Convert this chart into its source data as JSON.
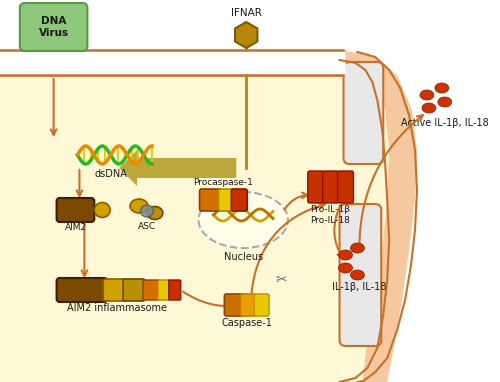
{
  "figsize": [
    5.0,
    3.82
  ],
  "dpi": 100,
  "bg_white": "#ffffff",
  "cell_bg": "#fff8d6",
  "membrane_fill": "#f5c8a0",
  "membrane_edge": "#c8702a",
  "arrow_color": "#c8702a",
  "olive_arrow": "#b8a030",
  "virus_green": "#8dc87a",
  "virus_green_edge": "#5a9940",
  "ifnar_gold": "#b8860b",
  "aim2_brown": "#7a4a00",
  "aim2_gold": "#d4a000",
  "asc_gold1": "#d4a000",
  "asc_gold2": "#b89000",
  "asc_teal": "#7a9090",
  "proc_orange": "#d47000",
  "proc_yellow": "#e8c800",
  "proc_red": "#c83000",
  "nuc_bg": "#fffde7",
  "nuc_edge": "#aaaaaa",
  "nuc_dna1": "#d4a000",
  "nuc_dna2": "#b87000",
  "pro_il_red": "#c83000",
  "pro_il_dark": "#8B1500",
  "caspase_orange": "#c87000",
  "caspase_yellow": "#e8a000",
  "caspase_gold": "#e8c800",
  "il_red": "#cc3300",
  "scissors_color": "#666666",
  "dna_green": "#22bb22",
  "dna_orange": "#ee8800",
  "dna_rung": "#ddcc00",
  "labels": {
    "dna_virus": "DNA\nVirus",
    "ifnar": "IFNAR",
    "dsdna": "dsDNA",
    "aim2": "AIM2",
    "asc": "ASC",
    "procaspase": "Procaspase-1",
    "nucleus": "Nucleus",
    "aim2_inflammasome": "AIM2 inflammasome",
    "caspase1": "Caspase-1",
    "pro_il": "Pro-IL-1β\nPro-IL-18",
    "il_18": "IL-1β, IL-18",
    "active_il": "Active IL-1β, IL-18"
  }
}
